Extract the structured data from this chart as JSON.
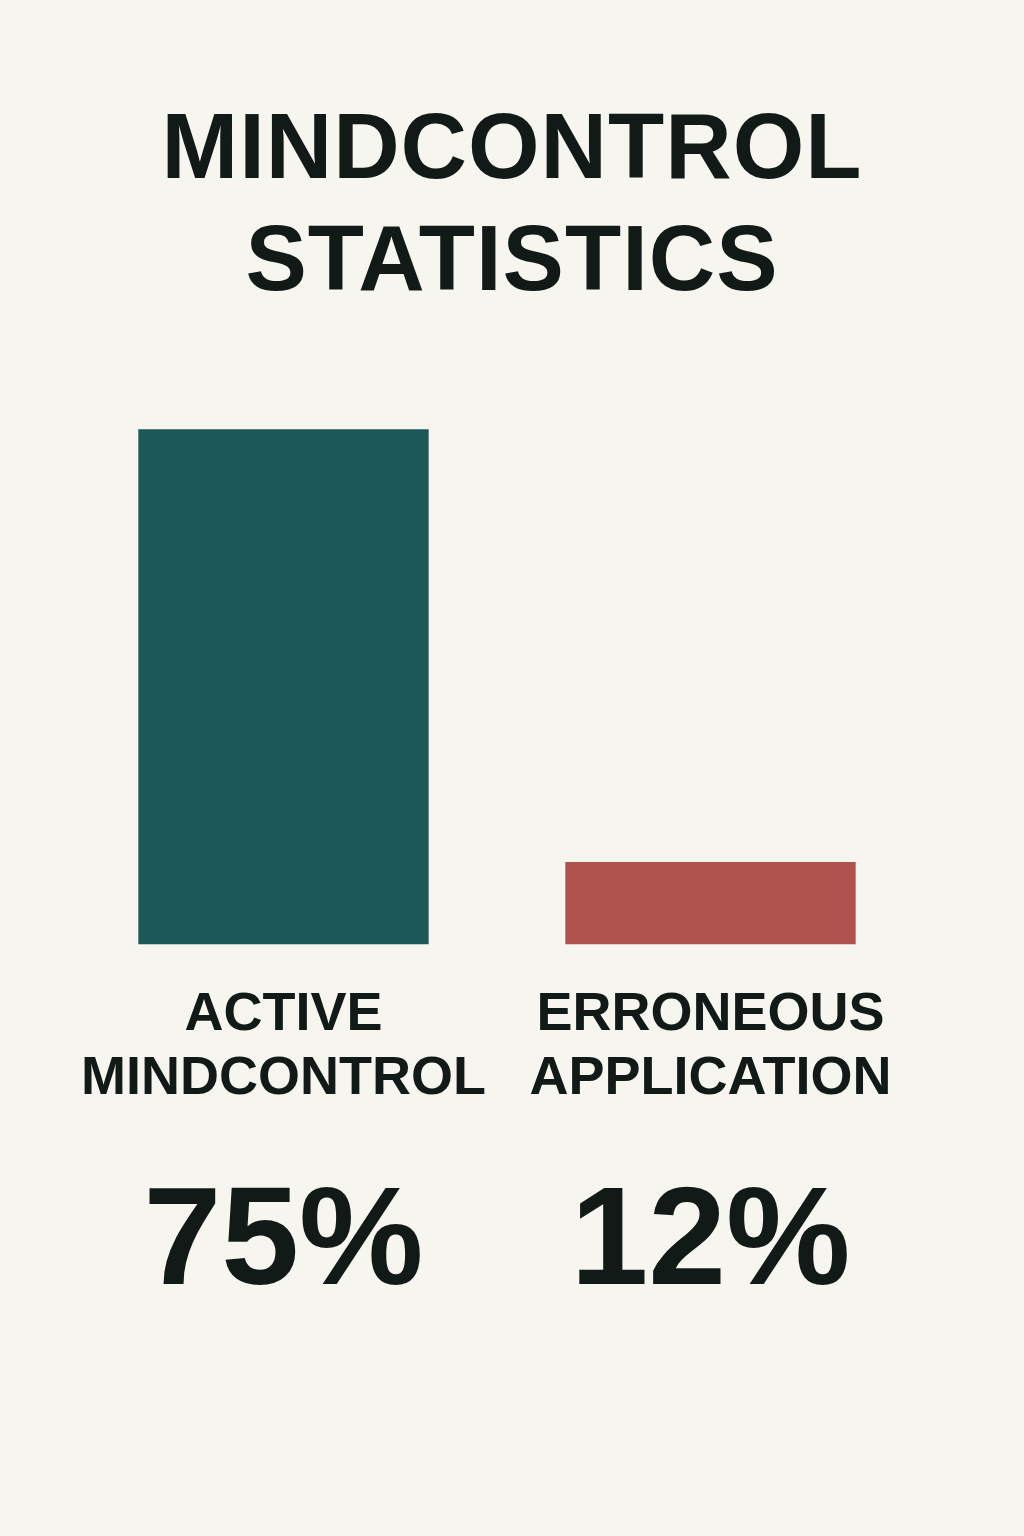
{
  "chart_data": {
    "type": "bar",
    "title": "MINDCONTROL STATISTICS",
    "categories": [
      "ACTIVE MINDCONTROL",
      "ERRONEOUS APPLICATION"
    ],
    "values": [
      75,
      12
    ],
    "colors": [
      "#1d5858",
      "#b0524d"
    ],
    "value_labels": [
      "75%",
      "12%"
    ],
    "grid": false,
    "legend": false
  }
}
